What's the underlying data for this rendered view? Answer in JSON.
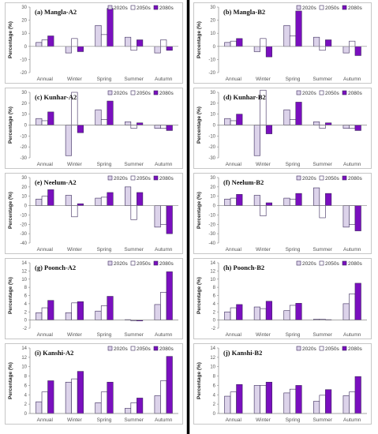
{
  "legend": [
    "2020s",
    "2050s",
    "2080s"
  ],
  "colors": {
    "s2020": "#dcd3ea",
    "s2050": "#ffffff",
    "s2080": "#7a0fbf",
    "border": "#3b2a5c",
    "panel_border": "#b9b9b9",
    "divider": "#000000"
  },
  "ylabel": "Percentage (%)",
  "chart_data": [
    {
      "type": "bar",
      "title": "(a) Mangla-A2",
      "categories": [
        "Annual",
        "Winter",
        "Spring",
        "Summer",
        "Autumn"
      ],
      "ylim": [
        -20,
        30
      ],
      "yticks": [
        -20,
        -10,
        0,
        10,
        20,
        30
      ],
      "ylabel": "Percentage (%)",
      "legend": "top-right",
      "series": [
        {
          "name": "2020s",
          "values": [
            3,
            -5,
            16,
            7,
            -5
          ]
        },
        {
          "name": "2050s",
          "values": [
            5,
            6,
            9,
            -3,
            5
          ]
        },
        {
          "name": "2080s",
          "values": [
            8,
            -4,
            29,
            5,
            -3
          ]
        }
      ]
    },
    {
      "type": "bar",
      "title": "(b) Mangla-B2",
      "categories": [
        "Annual",
        "Winter",
        "Spring",
        "Summer",
        "Autumn"
      ],
      "ylim": [
        -20,
        30
      ],
      "yticks": [
        -20,
        -10,
        0,
        10,
        20,
        30
      ],
      "ylabel": "Percentage (%)",
      "legend": "top-right",
      "series": [
        {
          "name": "2020s",
          "values": [
            3,
            -4,
            16,
            7,
            -5
          ]
        },
        {
          "name": "2050s",
          "values": [
            4,
            6,
            8,
            -3,
            4
          ]
        },
        {
          "name": "2080s",
          "values": [
            6,
            -8,
            27,
            5,
            -7
          ]
        }
      ]
    },
    {
      "type": "bar",
      "title": "(c) Kunhar-A2",
      "categories": [
        "Annual",
        "Winter",
        "Spring",
        "Summer",
        "Autumn"
      ],
      "ylim": [
        -30,
        30
      ],
      "yticks": [
        -30,
        -20,
        -10,
        0,
        10,
        20,
        30
      ],
      "ylabel": "Percentage (%)",
      "legend": "top-right",
      "series": [
        {
          "name": "2020s",
          "values": [
            6,
            -28,
            14,
            3,
            -3
          ]
        },
        {
          "name": "2050s",
          "values": [
            4,
            30,
            5,
            -3,
            -3
          ]
        },
        {
          "name": "2080s",
          "values": [
            12,
            -7,
            22,
            2,
            -5
          ]
        }
      ]
    },
    {
      "type": "bar",
      "title": "(d) Kunhar-B2",
      "categories": [
        "Annual",
        "Winter",
        "Spring",
        "Summer",
        "Autumn"
      ],
      "ylim": [
        -30,
        30
      ],
      "yticks": [
        -30,
        -20,
        -10,
        0,
        10,
        20,
        30
      ],
      "ylabel": "Percentage (%)",
      "legend": "top-right",
      "series": [
        {
          "name": "2020s",
          "values": [
            6,
            -28,
            14,
            3,
            -3
          ]
        },
        {
          "name": "2050s",
          "values": [
            4,
            32,
            5,
            -3,
            -3
          ]
        },
        {
          "name": "2080s",
          "values": [
            10,
            -8,
            21,
            2,
            -5
          ]
        }
      ]
    },
    {
      "type": "bar",
      "title": "(e) Neelum-A2",
      "categories": [
        "Annual",
        "Winter",
        "Spring",
        "Summer",
        "Autumn"
      ],
      "ylim": [
        -40,
        30
      ],
      "yticks": [
        -40,
        -30,
        -20,
        -10,
        0,
        10,
        20,
        30
      ],
      "ylabel": "Percentage (%)",
      "legend": "top-right",
      "series": [
        {
          "name": "2020s",
          "values": [
            7,
            11,
            8,
            20,
            -23
          ]
        },
        {
          "name": "2050s",
          "values": [
            10,
            -12,
            9,
            -15,
            -20
          ]
        },
        {
          "name": "2080s",
          "values": [
            17,
            2,
            14,
            14,
            -30
          ]
        }
      ]
    },
    {
      "type": "bar",
      "title": "(f) Neelum-B2",
      "categories": [
        "Annual",
        "Winter",
        "Spring",
        "Summer",
        "Autumn"
      ],
      "ylim": [
        -40,
        30
      ],
      "yticks": [
        -40,
        -30,
        -20,
        -10,
        0,
        10,
        20,
        30
      ],
      "ylabel": "Percentage (%)",
      "legend": "top-right",
      "series": [
        {
          "name": "2020s",
          "values": [
            7,
            11,
            8,
            19,
            -23
          ]
        },
        {
          "name": "2050s",
          "values": [
            8,
            -11,
            7,
            -13,
            -20
          ]
        },
        {
          "name": "2080s",
          "values": [
            12,
            3,
            13,
            13,
            -27
          ]
        }
      ]
    },
    {
      "type": "bar",
      "title": "(g) Poonch-A2",
      "categories": [
        "Annual",
        "Winter",
        "Spring",
        "Summer",
        "Autumn"
      ],
      "ylim": [
        -2,
        14
      ],
      "yticks": [
        -2,
        0,
        2,
        4,
        6,
        8,
        10,
        12,
        14
      ],
      "ylabel": "Percentage (%)",
      "legend": "top-right",
      "series": [
        {
          "name": "2020s",
          "values": [
            1.8,
            1.8,
            2.2,
            0.1,
            3.8
          ]
        },
        {
          "name": "2050s",
          "values": [
            3.0,
            4.2,
            3.5,
            -0.2,
            6.8
          ]
        },
        {
          "name": "2080s",
          "values": [
            4.8,
            4.5,
            5.8,
            -0.2,
            11.8
          ]
        }
      ]
    },
    {
      "type": "bar",
      "title": "(h) Poonch-B2",
      "categories": [
        "Annual",
        "Winter",
        "Spring",
        "Summer",
        "Autumn"
      ],
      "ylim": [
        -2,
        14
      ],
      "yticks": [
        -2,
        0,
        2,
        4,
        6,
        8,
        10,
        12,
        14
      ],
      "ylabel": "Percentage (%)",
      "legend": "top-right",
      "series": [
        {
          "name": "2020s",
          "values": [
            2.0,
            3.2,
            2.3,
            0.2,
            4.0
          ]
        },
        {
          "name": "2050s",
          "values": [
            3.0,
            2.8,
            3.6,
            0.2,
            6.4
          ]
        },
        {
          "name": "2080s",
          "values": [
            3.8,
            4.6,
            4.1,
            0.1,
            9.0
          ]
        }
      ]
    },
    {
      "type": "bar",
      "title": "(i) Kanshi-A2",
      "categories": [
        "Annual",
        "Winter",
        "Spring",
        "Summer",
        "Autumn"
      ],
      "ylim": [
        0,
        14
      ],
      "yticks": [
        0,
        2,
        4,
        6,
        8,
        10,
        12,
        14
      ],
      "ylabel": "Percentage (%)",
      "legend": "top-right",
      "series": [
        {
          "name": "2020s",
          "values": [
            2.5,
            6.7,
            2.3,
            1.1,
            3.8
          ]
        },
        {
          "name": "2050s",
          "values": [
            4.6,
            7.4,
            4.6,
            2.3,
            7.0
          ]
        },
        {
          "name": "2080s",
          "values": [
            7.0,
            9.0,
            6.7,
            3.3,
            12.2
          ]
        }
      ]
    },
    {
      "type": "bar",
      "title": "(j) Kanshi-B2",
      "categories": [
        "Annual",
        "Winter",
        "Spring",
        "Summer",
        "Autumn"
      ],
      "ylim": [
        0,
        14
      ],
      "yticks": [
        0,
        2,
        4,
        6,
        8,
        10,
        12,
        14
      ],
      "ylabel": "Percentage (%)",
      "legend": "top-right",
      "series": [
        {
          "name": "2020s",
          "values": [
            3.7,
            6.0,
            4.4,
            2.6,
            3.8
          ]
        },
        {
          "name": "2050s",
          "values": [
            4.6,
            6.0,
            5.2,
            3.9,
            4.6
          ]
        },
        {
          "name": "2080s",
          "values": [
            6.2,
            6.7,
            6.0,
            5.1,
            7.9
          ]
        }
      ]
    }
  ]
}
